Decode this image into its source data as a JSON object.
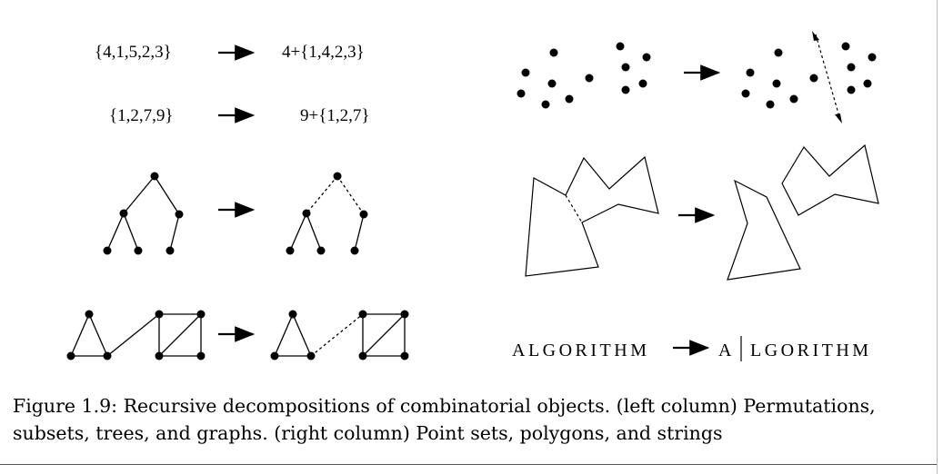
{
  "permutation": {
    "input": "{4,1,5,2,3}",
    "output": "4+{1,4,2,3}"
  },
  "subset": {
    "input": "{1,2,7,9}",
    "output": "9+{1,2,7}"
  },
  "string": {
    "input": "ALGORITHM",
    "output_head": "A",
    "output_tail": "LGORITHM"
  },
  "caption": {
    "line1": "Figure 1.9: Recursive decompositions of combinatorial objects. (left column) Permutations,",
    "line2": "subsets, trees, and graphs. (right column) Point sets, polygons, and strings"
  }
}
